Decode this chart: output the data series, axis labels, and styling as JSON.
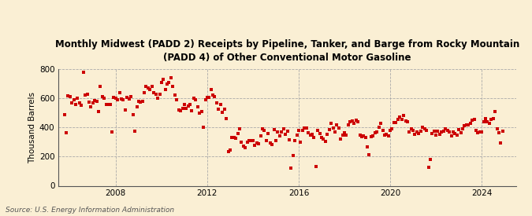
{
  "title": "Monthly Midwest (PADD 2) Receipts by Pipeline, Tanker, and Barge from Rocky Mountain\n(PADD 4) of Other Conventional Motor Gasoline",
  "ylabel": "Thousand Barrels",
  "source": "Source: U.S. Energy Information Administration",
  "background_color": "#faefd4",
  "dot_color": "#cc0000",
  "ylim": [
    0,
    800
  ],
  "yticks": [
    0,
    200,
    400,
    600,
    800
  ],
  "xlim_start": 2005.5,
  "xlim_end": 2025.5,
  "xticks": [
    2008,
    2012,
    2016,
    2020,
    2024
  ],
  "data": [
    [
      2005.75,
      490
    ],
    [
      2005.83,
      365
    ],
    [
      2005.92,
      615
    ],
    [
      2006.0,
      610
    ],
    [
      2006.08,
      570
    ],
    [
      2006.17,
      590
    ],
    [
      2006.25,
      560
    ],
    [
      2006.33,
      600
    ],
    [
      2006.42,
      570
    ],
    [
      2006.5,
      550
    ],
    [
      2006.58,
      780
    ],
    [
      2006.67,
      620
    ],
    [
      2006.75,
      630
    ],
    [
      2006.83,
      575
    ],
    [
      2006.92,
      540
    ],
    [
      2007.0,
      570
    ],
    [
      2007.08,
      585
    ],
    [
      2007.17,
      580
    ],
    [
      2007.25,
      510
    ],
    [
      2007.33,
      680
    ],
    [
      2007.42,
      610
    ],
    [
      2007.5,
      600
    ],
    [
      2007.58,
      560
    ],
    [
      2007.67,
      560
    ],
    [
      2007.75,
      555
    ],
    [
      2007.83,
      370
    ],
    [
      2007.92,
      605
    ],
    [
      2008.0,
      600
    ],
    [
      2008.08,
      590
    ],
    [
      2008.17,
      640
    ],
    [
      2008.25,
      595
    ],
    [
      2008.33,
      590
    ],
    [
      2008.42,
      520
    ],
    [
      2008.5,
      605
    ],
    [
      2008.58,
      595
    ],
    [
      2008.67,
      610
    ],
    [
      2008.75,
      490
    ],
    [
      2008.83,
      375
    ],
    [
      2008.92,
      540
    ],
    [
      2009.0,
      580
    ],
    [
      2009.08,
      575
    ],
    [
      2009.17,
      580
    ],
    [
      2009.25,
      640
    ],
    [
      2009.33,
      680
    ],
    [
      2009.42,
      670
    ],
    [
      2009.5,
      660
    ],
    [
      2009.58,
      680
    ],
    [
      2009.67,
      640
    ],
    [
      2009.75,
      625
    ],
    [
      2009.83,
      600
    ],
    [
      2009.92,
      630
    ],
    [
      2010.0,
      710
    ],
    [
      2010.08,
      730
    ],
    [
      2010.17,
      660
    ],
    [
      2010.25,
      700
    ],
    [
      2010.33,
      710
    ],
    [
      2010.42,
      740
    ],
    [
      2010.5,
      680
    ],
    [
      2010.58,
      620
    ],
    [
      2010.67,
      590
    ],
    [
      2010.75,
      520
    ],
    [
      2010.83,
      515
    ],
    [
      2010.92,
      530
    ],
    [
      2011.0,
      560
    ],
    [
      2011.08,
      530
    ],
    [
      2011.17,
      545
    ],
    [
      2011.25,
      555
    ],
    [
      2011.33,
      515
    ],
    [
      2011.42,
      600
    ],
    [
      2011.5,
      590
    ],
    [
      2011.58,
      540
    ],
    [
      2011.67,
      500
    ],
    [
      2011.75,
      510
    ],
    [
      2011.83,
      400
    ],
    [
      2011.92,
      590
    ],
    [
      2012.0,
      605
    ],
    [
      2012.08,
      605
    ],
    [
      2012.17,
      660
    ],
    [
      2012.25,
      620
    ],
    [
      2012.33,
      610
    ],
    [
      2012.42,
      570
    ],
    [
      2012.5,
      525
    ],
    [
      2012.58,
      560
    ],
    [
      2012.67,
      505
    ],
    [
      2012.75,
      525
    ],
    [
      2012.83,
      460
    ],
    [
      2012.92,
      235
    ],
    [
      2013.0,
      245
    ],
    [
      2013.08,
      330
    ],
    [
      2013.17,
      330
    ],
    [
      2013.25,
      325
    ],
    [
      2013.33,
      360
    ],
    [
      2013.42,
      390
    ],
    [
      2013.5,
      300
    ],
    [
      2013.58,
      270
    ],
    [
      2013.67,
      260
    ],
    [
      2013.75,
      300
    ],
    [
      2013.83,
      310
    ],
    [
      2013.92,
      310
    ],
    [
      2014.0,
      310
    ],
    [
      2014.08,
      280
    ],
    [
      2014.17,
      295
    ],
    [
      2014.25,
      290
    ],
    [
      2014.33,
      340
    ],
    [
      2014.42,
      390
    ],
    [
      2014.5,
      380
    ],
    [
      2014.58,
      310
    ],
    [
      2014.67,
      360
    ],
    [
      2014.75,
      295
    ],
    [
      2014.83,
      285
    ],
    [
      2014.92,
      385
    ],
    [
      2015.0,
      310
    ],
    [
      2015.08,
      370
    ],
    [
      2015.17,
      340
    ],
    [
      2015.25,
      370
    ],
    [
      2015.33,
      390
    ],
    [
      2015.42,
      355
    ],
    [
      2015.5,
      375
    ],
    [
      2015.58,
      315
    ],
    [
      2015.67,
      120
    ],
    [
      2015.75,
      210
    ],
    [
      2015.83,
      310
    ],
    [
      2015.92,
      350
    ],
    [
      2016.0,
      380
    ],
    [
      2016.08,
      300
    ],
    [
      2016.17,
      380
    ],
    [
      2016.25,
      395
    ],
    [
      2016.33,
      395
    ],
    [
      2016.42,
      365
    ],
    [
      2016.5,
      350
    ],
    [
      2016.58,
      355
    ],
    [
      2016.67,
      330
    ],
    [
      2016.75,
      130
    ],
    [
      2016.83,
      380
    ],
    [
      2016.92,
      360
    ],
    [
      2017.0,
      330
    ],
    [
      2017.08,
      320
    ],
    [
      2017.17,
      305
    ],
    [
      2017.25,
      355
    ],
    [
      2017.33,
      385
    ],
    [
      2017.42,
      430
    ],
    [
      2017.5,
      395
    ],
    [
      2017.58,
      370
    ],
    [
      2017.67,
      415
    ],
    [
      2017.75,
      395
    ],
    [
      2017.83,
      320
    ],
    [
      2017.92,
      350
    ],
    [
      2018.0,
      365
    ],
    [
      2018.08,
      350
    ],
    [
      2018.17,
      420
    ],
    [
      2018.25,
      440
    ],
    [
      2018.33,
      445
    ],
    [
      2018.42,
      430
    ],
    [
      2018.5,
      450
    ],
    [
      2018.58,
      440
    ],
    [
      2018.67,
      350
    ],
    [
      2018.75,
      335
    ],
    [
      2018.83,
      340
    ],
    [
      2018.92,
      330
    ],
    [
      2019.0,
      265
    ],
    [
      2019.08,
      215
    ],
    [
      2019.17,
      335
    ],
    [
      2019.25,
      340
    ],
    [
      2019.33,
      365
    ],
    [
      2019.42,
      370
    ],
    [
      2019.5,
      400
    ],
    [
      2019.58,
      430
    ],
    [
      2019.67,
      380
    ],
    [
      2019.75,
      350
    ],
    [
      2019.83,
      355
    ],
    [
      2019.92,
      340
    ],
    [
      2020.0,
      380
    ],
    [
      2020.08,
      390
    ],
    [
      2020.17,
      435
    ],
    [
      2020.25,
      435
    ],
    [
      2020.33,
      455
    ],
    [
      2020.42,
      470
    ],
    [
      2020.5,
      455
    ],
    [
      2020.58,
      480
    ],
    [
      2020.67,
      445
    ],
    [
      2020.75,
      440
    ],
    [
      2020.83,
      370
    ],
    [
      2020.92,
      390
    ],
    [
      2021.0,
      380
    ],
    [
      2021.08,
      355
    ],
    [
      2021.17,
      370
    ],
    [
      2021.25,
      360
    ],
    [
      2021.33,
      375
    ],
    [
      2021.42,
      400
    ],
    [
      2021.5,
      390
    ],
    [
      2021.58,
      380
    ],
    [
      2021.67,
      125
    ],
    [
      2021.75,
      180
    ],
    [
      2021.83,
      360
    ],
    [
      2021.92,
      375
    ],
    [
      2022.0,
      350
    ],
    [
      2022.08,
      375
    ],
    [
      2022.17,
      355
    ],
    [
      2022.25,
      370
    ],
    [
      2022.33,
      375
    ],
    [
      2022.42,
      390
    ],
    [
      2022.5,
      380
    ],
    [
      2022.58,
      370
    ],
    [
      2022.67,
      340
    ],
    [
      2022.75,
      370
    ],
    [
      2022.83,
      360
    ],
    [
      2022.92,
      345
    ],
    [
      2023.0,
      385
    ],
    [
      2023.08,
      365
    ],
    [
      2023.17,
      390
    ],
    [
      2023.25,
      410
    ],
    [
      2023.33,
      420
    ],
    [
      2023.42,
      420
    ],
    [
      2023.5,
      430
    ],
    [
      2023.58,
      450
    ],
    [
      2023.67,
      455
    ],
    [
      2023.75,
      380
    ],
    [
      2023.83,
      365
    ],
    [
      2023.92,
      370
    ],
    [
      2024.0,
      370
    ],
    [
      2024.08,
      440
    ],
    [
      2024.17,
      460
    ],
    [
      2024.25,
      440
    ],
    [
      2024.33,
      430
    ],
    [
      2024.42,
      455
    ],
    [
      2024.5,
      460
    ],
    [
      2024.58,
      510
    ],
    [
      2024.67,
      390
    ],
    [
      2024.75,
      365
    ],
    [
      2024.83,
      295
    ],
    [
      2024.92,
      375
    ]
  ]
}
